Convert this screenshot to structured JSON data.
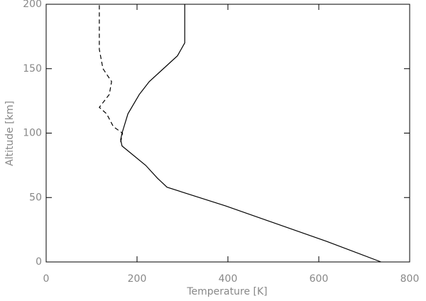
{
  "chart_data": {
    "type": "line",
    "x_label": "Temperature [K]",
    "y_label": "Altitude [km]",
    "xlim": [
      0,
      800
    ],
    "xticks": [
      0,
      200,
      400,
      600,
      800
    ],
    "ylim": [
      0,
      200
    ],
    "yticks": [
      0,
      50,
      100,
      150,
      200
    ],
    "series": [
      {
        "color": "#000000",
        "dashed": false,
        "x": [
          737,
          617,
          395,
          266,
          245,
          219,
          167,
          164,
          167,
          180,
          205,
          227,
          258,
          289,
          305,
          305
        ],
        "values": [
          0,
          16,
          43.5,
          58,
          65,
          75,
          90,
          95,
          100,
          115,
          130,
          140,
          150,
          160,
          170,
          200
        ]
      },
      {
        "color": "#000000",
        "dashed": true,
        "x": [
          164,
          168,
          148,
          133,
          117,
          128,
          139,
          144,
          125,
          117,
          117
        ],
        "values": [
          93,
          100,
          105,
          115,
          120,
          125,
          130,
          140,
          150,
          165,
          200
        ]
      }
    ]
  }
}
